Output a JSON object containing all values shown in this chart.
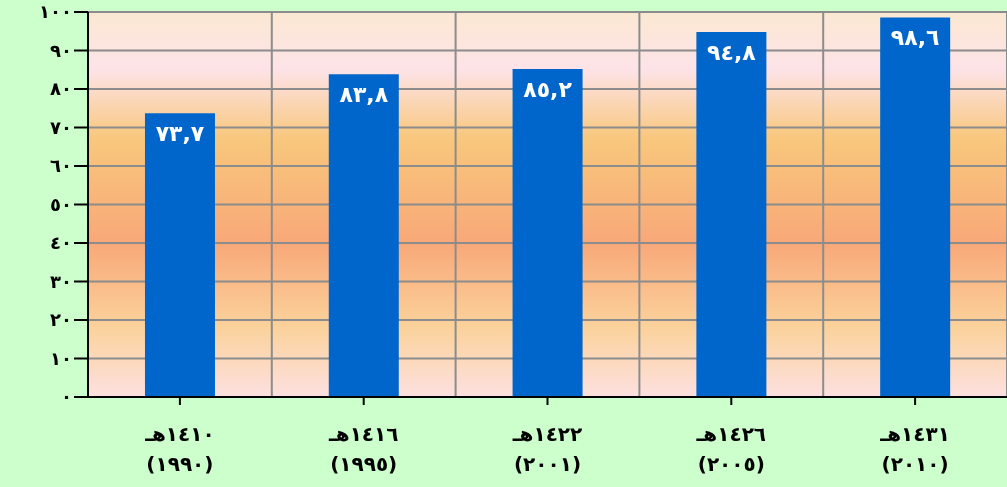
{
  "chart_data": {
    "type": "bar",
    "categories": [
      "١٤١٠هـ\n(١٩٩٠)",
      "١٤١٦هـ\n(١٩٩٥)",
      "١٤٢٢هـ\n(٢٠٠١)",
      "١٤٢٦هـ\n(٢٠٠٥)",
      "١٤٣١هـ\n(٢٠١٠)"
    ],
    "values": [
      73.7,
      83.8,
      85.2,
      94.8,
      98.6
    ],
    "value_labels": [
      "٧٣,٧",
      "٨٣,٨",
      "٨٥,٢",
      "٩٤,٨",
      "٩٨,٦"
    ],
    "color": "#0066cc",
    "ylim": [
      0,
      100
    ],
    "yticks": [
      {
        "value": 0,
        "label": "٠"
      },
      {
        "value": 10,
        "label": "١٠"
      },
      {
        "value": 20,
        "label": "٢٠"
      },
      {
        "value": 30,
        "label": "٣٠"
      },
      {
        "value": 40,
        "label": "٤٠"
      },
      {
        "value": 50,
        "label": "٥٠"
      },
      {
        "value": 60,
        "label": "٦٠"
      },
      {
        "value": 70,
        "label": "٧٠"
      },
      {
        "value": 80,
        "label": "٨٠"
      },
      {
        "value": 90,
        "label": "٩٠"
      },
      {
        "value": 100,
        "label": "١٠٠"
      }
    ],
    "grid": true
  }
}
